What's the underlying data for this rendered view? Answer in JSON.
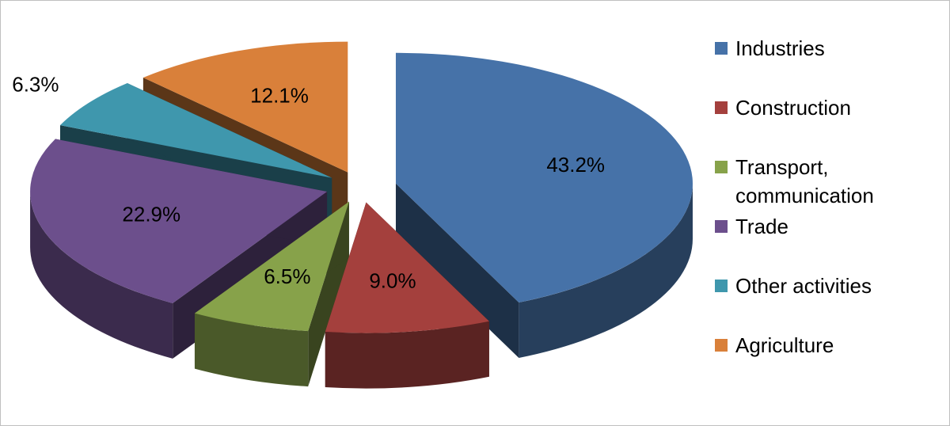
{
  "chart_data": {
    "type": "pie",
    "three_d": true,
    "exploded": true,
    "categories": [
      "Industries",
      "Construction",
      "Transport, communication",
      "Trade",
      "Other activities",
      "Agriculture"
    ],
    "values": [
      43.2,
      9.0,
      6.5,
      22.9,
      6.3,
      12.1
    ],
    "value_labels": [
      "43.2%",
      "9.0%",
      "6.5%",
      "22.9%",
      "6.3%",
      "12.1%"
    ],
    "colors": [
      "#4672a8",
      "#a4403d",
      "#87a24a",
      "#6c4f8c",
      "#3f97ad",
      "#d9803a"
    ],
    "legend": "right"
  }
}
